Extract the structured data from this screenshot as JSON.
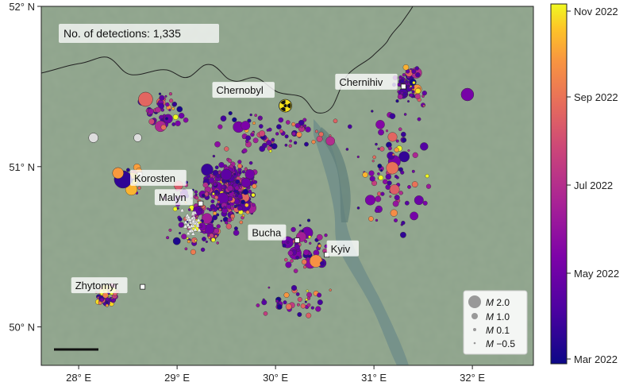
{
  "map": {
    "detections_label": "No. of detections: 1,335",
    "lon_ticks": [
      "28° E",
      "29° E",
      "30° E",
      "31° E",
      "32° E"
    ],
    "lat_ticks": [
      "52° N",
      "51° N",
      "50° N"
    ],
    "places": [
      {
        "name": "Chernobyl",
        "lon": 30.1,
        "lat": 51.38,
        "marker": "radiation"
      },
      {
        "name": "Chernihiv",
        "lon": 31.3,
        "lat": 51.5,
        "marker": "square"
      },
      {
        "name": "Korosten",
        "lon": 28.62,
        "lat": 50.95,
        "marker": "square"
      },
      {
        "name": "Malyn",
        "lon": 29.24,
        "lat": 50.77,
        "marker": "square"
      },
      {
        "name": "Bucha",
        "lon": 30.22,
        "lat": 50.54,
        "marker": "square"
      },
      {
        "name": "Kyiv",
        "lon": 30.52,
        "lat": 50.45,
        "marker": "square"
      },
      {
        "name": "Zhytomyr",
        "lon": 28.65,
        "lat": 50.25,
        "marker": "square"
      }
    ],
    "magnitude_legend": [
      {
        "prefix": "M",
        "value": "2.0"
      },
      {
        "prefix": "M",
        "value": "1.0"
      },
      {
        "prefix": "M",
        "value": "0.1"
      },
      {
        "prefix": "M",
        "value": "−0.5"
      }
    ],
    "colorbar": {
      "labels": [
        "Nov 2022",
        "Sep 2022",
        "Jul 2022",
        "May 2022",
        "Mar 2022"
      ],
      "colormap": "plasma"
    },
    "colors": {
      "land": "#8ea38c",
      "water": "#6f8d89",
      "border": "#222222",
      "event_early": "#0d0887",
      "event_late": "#f0f921"
    }
  }
}
